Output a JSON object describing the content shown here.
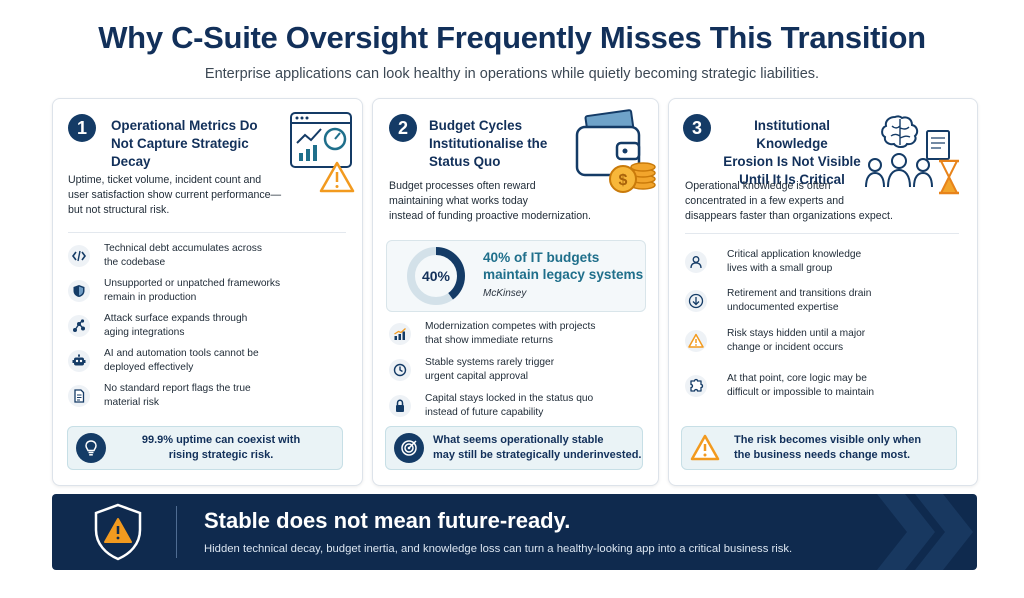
{
  "header": {
    "title": "Why C-Suite Oversight Frequently Misses This Transition",
    "subtitle": "Enterprise applications can look healthy in operations while quietly becoming strategic liabilities."
  },
  "cards": [
    {
      "number": "1",
      "title": [
        "Operational Metrics Do",
        "Not Capture Strategic Decay"
      ],
      "description": [
        "Uptime, ticket volume, incident count and",
        "user satisfaction show current performance—",
        "but not structural risk."
      ],
      "items": [
        {
          "icon": "code-icon",
          "lines": [
            "Technical debt accumulates across",
            "the codebase"
          ]
        },
        {
          "icon": "shield-icon",
          "lines": [
            "Unsupported or unpatched frameworks",
            "remain in production"
          ]
        },
        {
          "icon": "network-icon",
          "lines": [
            "Attack surface expands through",
            "aging integrations"
          ]
        },
        {
          "icon": "robot-icon",
          "lines": [
            "AI and automation tools cannot be",
            "deployed effectively"
          ]
        },
        {
          "icon": "document-icon",
          "lines": [
            "No standard report flags the true",
            "material risk"
          ]
        }
      ],
      "callout": {
        "icon": "lightbulb-icon",
        "lines": [
          "99.9% uptime can coexist with",
          "rising strategic risk."
        ]
      }
    },
    {
      "number": "2",
      "title": [
        "Budget Cycles",
        "Institutionalise the",
        "Status Quo"
      ],
      "description": [
        "Budget processes often reward",
        "maintaining what works today",
        "instead of funding proactive modernization."
      ],
      "stat": {
        "value": "40%",
        "text_lines": [
          "40% of IT budgets",
          "maintain legacy systems"
        ],
        "source": "McKinsey",
        "fraction": 0.4
      },
      "items": [
        {
          "icon": "growth-chart-icon",
          "lines": [
            "Modernization competes with projects",
            "that show immediate returns"
          ]
        },
        {
          "icon": "clock-icon",
          "lines": [
            "Stable systems rarely trigger",
            "urgent capital approval"
          ]
        },
        {
          "icon": "lock-icon",
          "lines": [
            "Capital stays locked in the status quo",
            "instead of future capability"
          ]
        }
      ],
      "callout": {
        "icon": "target-icon",
        "lines": [
          "What seems operationally stable",
          "may still be strategically underinvested."
        ]
      }
    },
    {
      "number": "3",
      "title": [
        "Institutional Knowledge",
        "Erosion Is Not Visible",
        "Until It Is Critical"
      ],
      "description": [
        "Operational knowledge is often",
        "concentrated in a few experts and",
        "disappears faster than organizations expect."
      ],
      "items": [
        {
          "icon": "person-icon",
          "lines": [
            "Critical application knowledge",
            "lives with a small group"
          ]
        },
        {
          "icon": "arrow-down-icon",
          "lines": [
            "Retirement and transitions drain",
            "undocumented expertise"
          ]
        },
        {
          "icon": "warning-icon",
          "lines": [
            "Risk stays hidden until a major",
            "change or incident occurs"
          ]
        },
        {
          "icon": "puzzle-icon",
          "lines": [
            "At that point, core logic may be",
            "difficult or impossible to maintain"
          ]
        }
      ],
      "callout": {
        "icon": "warning-icon",
        "lines": [
          "The risk becomes visible only when",
          "the business needs change most."
        ]
      }
    }
  ],
  "banner": {
    "title": "Stable does not mean future-ready.",
    "subtitle": "Hidden technical decay, budget inertia, and knowledge loss can turn a healthy-looking app into a critical business risk."
  },
  "colors": {
    "navy": "#143b66",
    "teal": "#1f6f8b",
    "orange": "#f29a1f",
    "banner": "#0f2a4e"
  }
}
